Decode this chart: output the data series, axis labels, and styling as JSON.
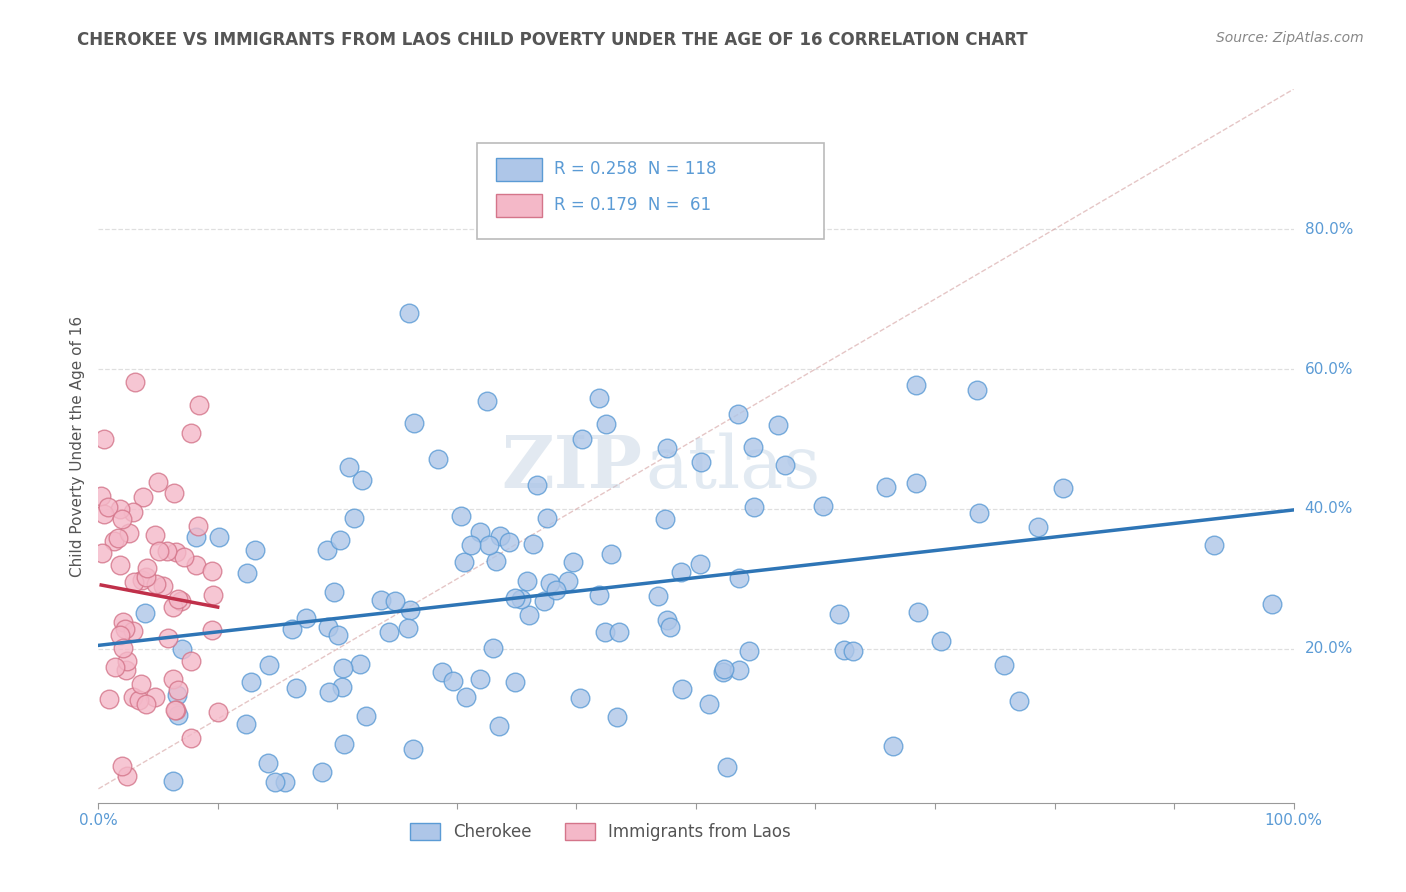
{
  "title": "CHEROKEE VS IMMIGRANTS FROM LAOS CHILD POVERTY UNDER THE AGE OF 16 CORRELATION CHART",
  "source": "Source: ZipAtlas.com",
  "ylabel": "Child Poverty Under the Age of 16",
  "xlim": [
    0.0,
    1.0
  ],
  "ylim": [
    0.0,
    1.0
  ],
  "xticks": [
    0.0,
    0.1,
    0.2,
    0.3,
    0.4,
    0.5,
    0.6,
    0.7,
    0.8,
    0.9,
    1.0
  ],
  "xticklabels": [
    "0.0%",
    "",
    "",
    "",
    "",
    "",
    "",
    "",
    "",
    "",
    "100.0%"
  ],
  "yticks": [
    0.2,
    0.4,
    0.6,
    0.8
  ],
  "yticklabels": [
    "20.0%",
    "40.0%",
    "60.0%",
    "80.0%"
  ],
  "watermark_zip": "ZIP",
  "watermark_atlas": "atlas",
  "legend_r1": "0.258",
  "legend_n1": "118",
  "legend_r2": "0.179",
  "legend_n2": " 61",
  "legend_label1": "Cherokee",
  "legend_label2": "Immigrants from Laos",
  "cherokee_color": "#aec6e8",
  "cherokee_edge": "#5b9bd5",
  "laos_color": "#f4b8c8",
  "laos_edge": "#d4758a",
  "reg_line1_color": "#2e75b6",
  "reg_line2_color": "#c0304a",
  "diag_line_color": "#d4a0a0",
  "grid_color": "#d8d8d8",
  "title_color": "#555555",
  "axis_tick_color": "#5b9bd5",
  "label_color": "#555555",
  "background_color": "#ffffff",
  "cherokee_seed": 42,
  "laos_seed": 123,
  "cherokee_n": 118,
  "laos_n": 61
}
